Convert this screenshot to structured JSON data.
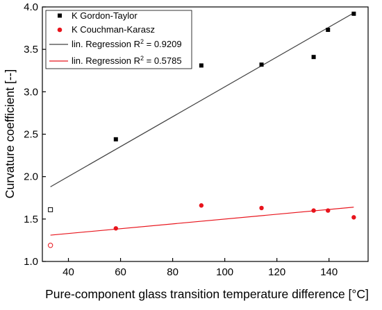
{
  "chart_data": {
    "type": "scatter",
    "xlabel": "Pure-component glass transition temperature difference [°C]",
    "ylabel": "Curvature coefficient [--]",
    "xlim": [
      30,
      155
    ],
    "ylim": [
      1.0,
      4.0
    ],
    "xticks": [
      40,
      60,
      80,
      100,
      120,
      140
    ],
    "yticks": [
      1.0,
      1.5,
      2.0,
      2.5,
      3.0,
      3.5,
      4.0
    ],
    "x_tick_labels": [
      "40",
      "60",
      "80",
      "100",
      "120",
      "140"
    ],
    "y_tick_labels": [
      "1.0",
      "1.5",
      "2.0",
      "2.5",
      "3.0",
      "3.5",
      "4.0"
    ],
    "grid": false,
    "legend_position": "top-left",
    "series": [
      {
        "name": "K Gordon-Taylor",
        "marker": "square",
        "color": "#000000",
        "points": [
          {
            "x": 58.2,
            "y": 2.44
          },
          {
            "x": 91.0,
            "y": 3.31
          },
          {
            "x": 114.1,
            "y": 3.32
          },
          {
            "x": 134.1,
            "y": 3.41
          },
          {
            "x": 139.6,
            "y": 3.73
          },
          {
            "x": 149.5,
            "y": 3.92
          }
        ],
        "open_points": [
          {
            "x": 33.1,
            "y": 1.61
          }
        ]
      },
      {
        "name": "K Couchman-Karasz",
        "marker": "circle",
        "color": "#e8141c",
        "points": [
          {
            "x": 58.2,
            "y": 1.39
          },
          {
            "x": 91.0,
            "y": 1.66
          },
          {
            "x": 114.1,
            "y": 1.63
          },
          {
            "x": 134.1,
            "y": 1.6
          },
          {
            "x": 139.6,
            "y": 1.6
          },
          {
            "x": 149.5,
            "y": 1.52
          }
        ],
        "open_points": [
          {
            "x": 33.1,
            "y": 1.19
          }
        ]
      }
    ],
    "regressions": [
      {
        "label_prefix": "lin. Regression R",
        "label_sup": "2",
        "label_value": " = 0.9209",
        "color": "#404040",
        "x_range": [
          33.1,
          149.5
        ],
        "y_range": [
          1.88,
          3.93
        ]
      },
      {
        "label_prefix": "lin. Regression R",
        "label_sup": "2",
        "label_value": " = 0.5785",
        "color": "#e8141c",
        "x_range": [
          33.1,
          149.5
        ],
        "y_range": [
          1.31,
          1.64
        ]
      }
    ]
  }
}
